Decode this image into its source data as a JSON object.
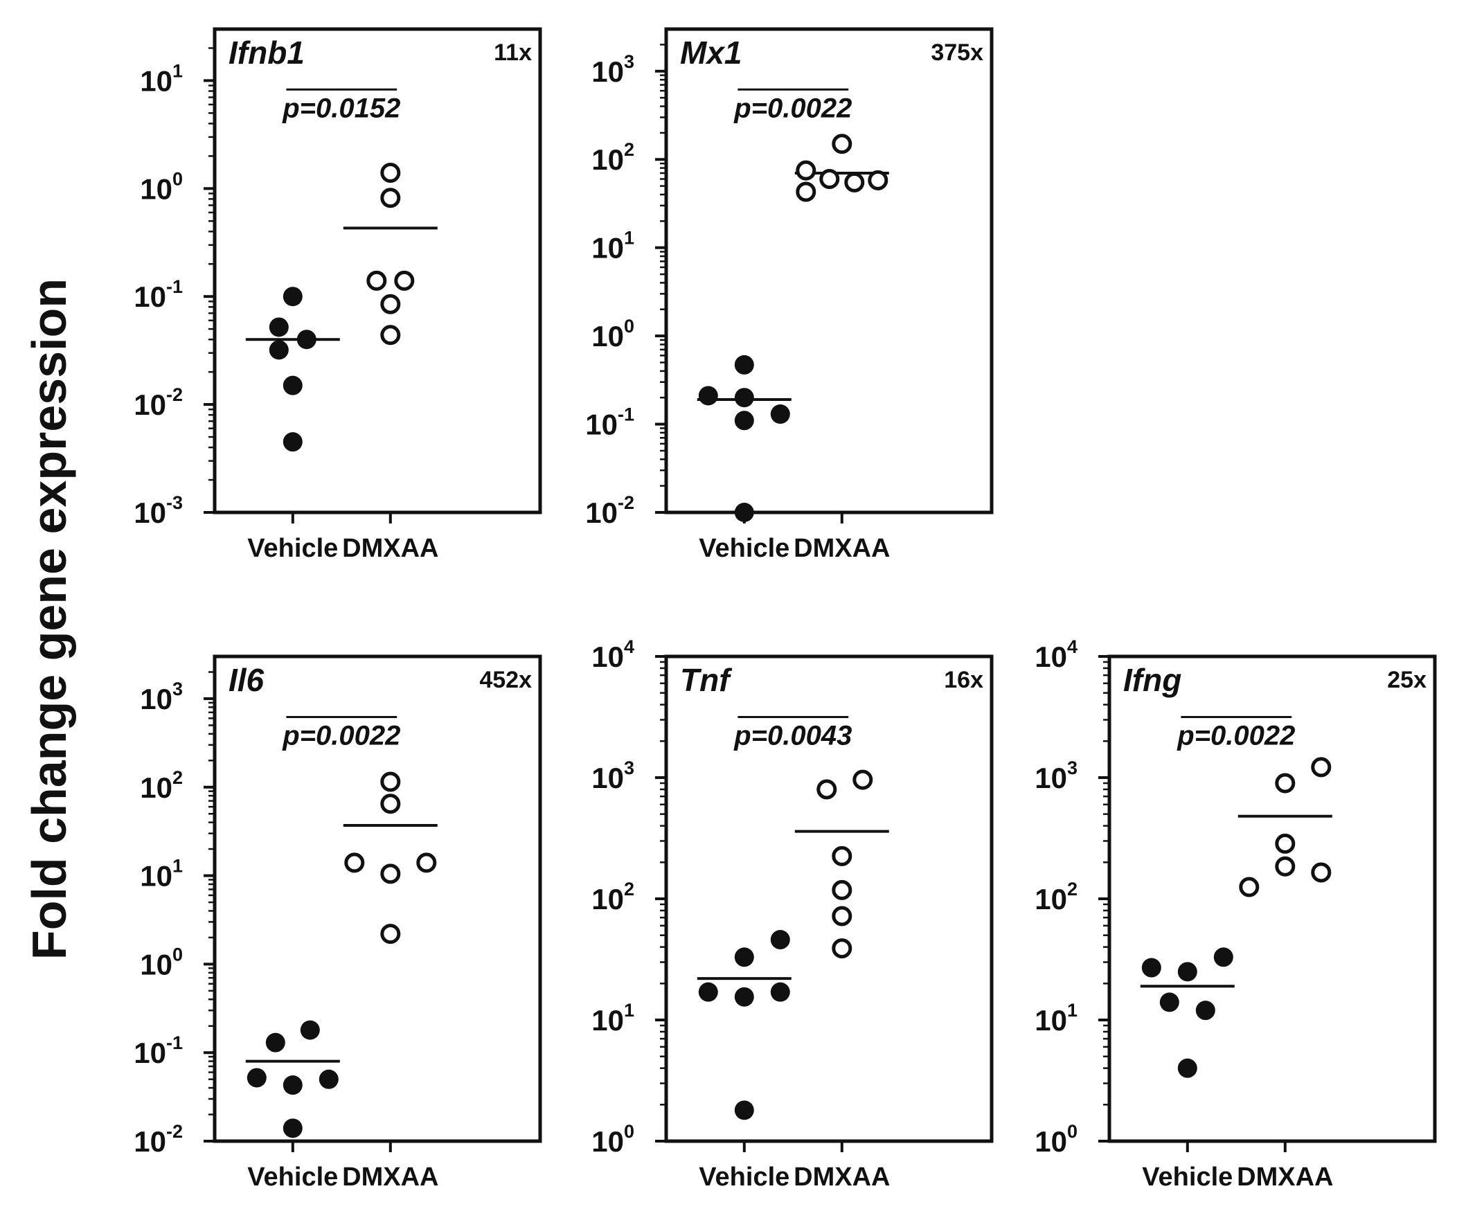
{
  "figure": {
    "ylabel": "Fold change gene expression"
  },
  "colors": {
    "ink": "#111111",
    "background": "#ffffff"
  },
  "chart_data": [
    {
      "type": "scatter",
      "gene": "Ifnb1",
      "fold_change": "11x",
      "p_value": "p=0.0152",
      "categories": [
        "Vehicle",
        "DMXAA"
      ],
      "yscale": "log",
      "ylim": [
        0.001,
        30
      ],
      "yticks": [
        {
          "base": "10",
          "exp": "-3",
          "value": 0.001
        },
        {
          "base": "10",
          "exp": "-2",
          "value": 0.01
        },
        {
          "base": "10",
          "exp": "-1",
          "value": 0.1
        },
        {
          "base": "10",
          "exp": "0",
          "value": 1
        },
        {
          "base": "10",
          "exp": "1",
          "value": 10
        }
      ],
      "series": [
        {
          "name": "Vehicle",
          "marker": "filled",
          "mean": 0.04,
          "points": [
            {
              "v": 0.1,
              "dx": 0
            },
            {
              "v": 0.052,
              "dx": -20
            },
            {
              "v": 0.04,
              "dx": 20
            },
            {
              "v": 0.032,
              "dx": -20
            },
            {
              "v": 0.015,
              "dx": 0
            },
            {
              "v": 0.0045,
              "dx": 0
            }
          ]
        },
        {
          "name": "DMXAA",
          "marker": "open",
          "mean": 0.43,
          "points": [
            {
              "v": 1.4,
              "dx": 0
            },
            {
              "v": 0.82,
              "dx": 0
            },
            {
              "v": 0.14,
              "dx": -20
            },
            {
              "v": 0.14,
              "dx": 20
            },
            {
              "v": 0.085,
              "dx": 0
            },
            {
              "v": 0.044,
              "dx": 0
            }
          ]
        }
      ]
    },
    {
      "type": "scatter",
      "gene": "Mx1",
      "fold_change": "375x",
      "p_value": "p=0.0022",
      "categories": [
        "Vehicle",
        "DMXAA"
      ],
      "yscale": "log",
      "ylim": [
        0.01,
        3000
      ],
      "yticks": [
        {
          "base": "10",
          "exp": "-2",
          "value": 0.01
        },
        {
          "base": "10",
          "exp": "-1",
          "value": 0.1
        },
        {
          "base": "10",
          "exp": "0",
          "value": 1
        },
        {
          "base": "10",
          "exp": "1",
          "value": 10
        },
        {
          "base": "10",
          "exp": "2",
          "value": 100
        },
        {
          "base": "10",
          "exp": "3",
          "value": 1000
        }
      ],
      "series": [
        {
          "name": "Vehicle",
          "marker": "filled",
          "mean": 0.19,
          "points": [
            {
              "v": 0.47,
              "dx": 0
            },
            {
              "v": 0.21,
              "dx": -52
            },
            {
              "v": 0.2,
              "dx": 0
            },
            {
              "v": 0.13,
              "dx": 52
            },
            {
              "v": 0.11,
              "dx": 0
            },
            {
              "v": 0.01,
              "dx": 0
            }
          ]
        },
        {
          "name": "DMXAA",
          "marker": "open",
          "mean": 70,
          "points": [
            {
              "v": 150,
              "dx": 0
            },
            {
              "v": 75,
              "dx": -52
            },
            {
              "v": 60,
              "dx": -18
            },
            {
              "v": 55,
              "dx": 18
            },
            {
              "v": 58,
              "dx": 52
            },
            {
              "v": 43,
              "dx": -52
            }
          ]
        }
      ]
    },
    {
      "type": "scatter",
      "gene": "Il6",
      "fold_change": "452x",
      "p_value": "p=0.0022",
      "categories": [
        "Vehicle",
        "DMXAA"
      ],
      "yscale": "log",
      "ylim": [
        0.01,
        3000
      ],
      "yticks": [
        {
          "base": "10",
          "exp": "-2",
          "value": 0.01
        },
        {
          "base": "10",
          "exp": "-1",
          "value": 0.1
        },
        {
          "base": "10",
          "exp": "0",
          "value": 1
        },
        {
          "base": "10",
          "exp": "1",
          "value": 10
        },
        {
          "base": "10",
          "exp": "2",
          "value": 100
        },
        {
          "base": "10",
          "exp": "3",
          "value": 1000
        }
      ],
      "series": [
        {
          "name": "Vehicle",
          "marker": "filled",
          "mean": 0.08,
          "points": [
            {
              "v": 0.18,
              "dx": 25
            },
            {
              "v": 0.13,
              "dx": -25
            },
            {
              "v": 0.052,
              "dx": -52
            },
            {
              "v": 0.05,
              "dx": 52
            },
            {
              "v": 0.043,
              "dx": 0
            },
            {
              "v": 0.014,
              "dx": 0
            }
          ]
        },
        {
          "name": "DMXAA",
          "marker": "open",
          "mean": 37,
          "points": [
            {
              "v": 115,
              "dx": 0
            },
            {
              "v": 65,
              "dx": 0
            },
            {
              "v": 14,
              "dx": -52
            },
            {
              "v": 14,
              "dx": 52
            },
            {
              "v": 10.5,
              "dx": 0
            },
            {
              "v": 2.2,
              "dx": 0
            }
          ]
        }
      ]
    },
    {
      "type": "scatter",
      "gene": "Tnf",
      "fold_change": "16x",
      "p_value": "p=0.0043",
      "categories": [
        "Vehicle",
        "DMXAA"
      ],
      "yscale": "log",
      "ylim": [
        1,
        10000
      ],
      "yticks": [
        {
          "base": "10",
          "exp": "0",
          "value": 1
        },
        {
          "base": "10",
          "exp": "1",
          "value": 10
        },
        {
          "base": "10",
          "exp": "2",
          "value": 100
        },
        {
          "base": "10",
          "exp": "3",
          "value": 1000
        },
        {
          "base": "10",
          "exp": "4",
          "value": 10000
        }
      ],
      "series": [
        {
          "name": "Vehicle",
          "marker": "filled",
          "mean": 22,
          "points": [
            {
              "v": 46,
              "dx": 52
            },
            {
              "v": 33,
              "dx": 0
            },
            {
              "v": 17,
              "dx": -52
            },
            {
              "v": 17,
              "dx": 52
            },
            {
              "v": 15.5,
              "dx": 0
            },
            {
              "v": 1.8,
              "dx": 0
            }
          ]
        },
        {
          "name": "DMXAA",
          "marker": "open",
          "mean": 360,
          "points": [
            {
              "v": 960,
              "dx": 30
            },
            {
              "v": 800,
              "dx": -22
            },
            {
              "v": 225,
              "dx": 0
            },
            {
              "v": 118,
              "dx": 0
            },
            {
              "v": 72,
              "dx": 0
            },
            {
              "v": 39,
              "dx": 0
            }
          ]
        }
      ]
    },
    {
      "type": "scatter",
      "gene": "Ifng",
      "fold_change": "25x",
      "p_value": "p=0.0022",
      "categories": [
        "Vehicle",
        "DMXAA"
      ],
      "yscale": "log",
      "ylim": [
        1,
        10000
      ],
      "yticks": [
        {
          "base": "10",
          "exp": "0",
          "value": 1
        },
        {
          "base": "10",
          "exp": "1",
          "value": 10
        },
        {
          "base": "10",
          "exp": "2",
          "value": 100
        },
        {
          "base": "10",
          "exp": "3",
          "value": 1000
        },
        {
          "base": "10",
          "exp": "4",
          "value": 10000
        }
      ],
      "series": [
        {
          "name": "Vehicle",
          "marker": "filled",
          "mean": 19,
          "points": [
            {
              "v": 33,
              "dx": 52
            },
            {
              "v": 27,
              "dx": -52
            },
            {
              "v": 25,
              "dx": 0
            },
            {
              "v": 14,
              "dx": -26
            },
            {
              "v": 12,
              "dx": 26
            },
            {
              "v": 4,
              "dx": 0
            }
          ]
        },
        {
          "name": "DMXAA",
          "marker": "open",
          "mean": 480,
          "points": [
            {
              "v": 1220,
              "dx": 52
            },
            {
              "v": 900,
              "dx": 0
            },
            {
              "v": 285,
              "dx": 0
            },
            {
              "v": 185,
              "dx": 0
            },
            {
              "v": 165,
              "dx": 52
            },
            {
              "v": 125,
              "dx": -52
            }
          ]
        }
      ]
    }
  ]
}
